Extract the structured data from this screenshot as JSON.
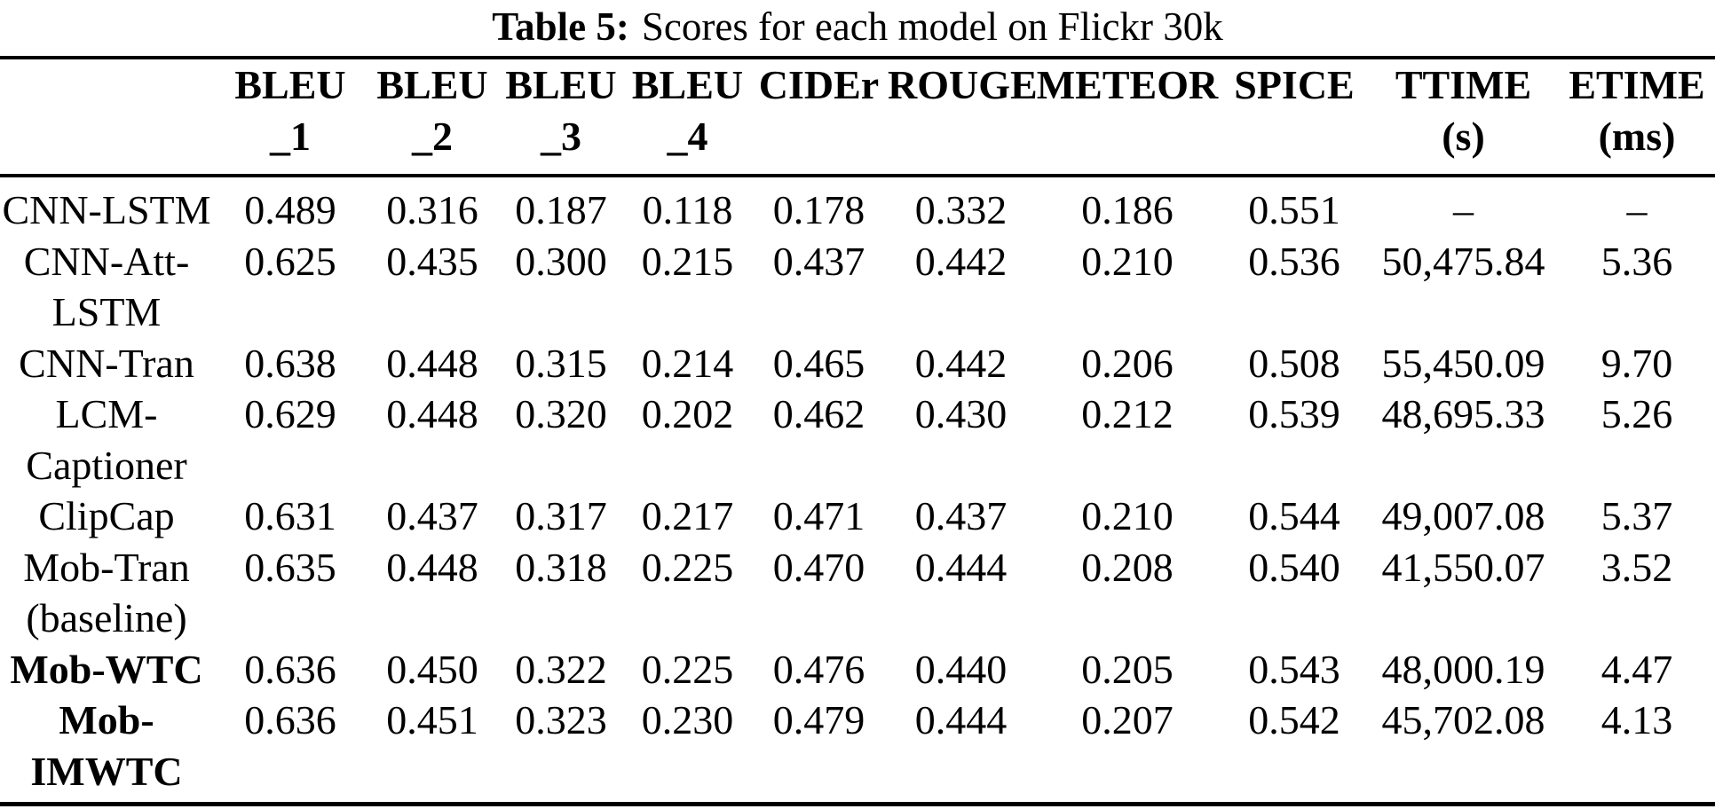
{
  "caption": {
    "label": "Table 5:",
    "text": "Scores for each model on Flickr 30k"
  },
  "table": {
    "columns": [
      {
        "name": "model",
        "label": ""
      },
      {
        "name": "bleu-1",
        "label": "BLEU\n_1"
      },
      {
        "name": "bleu-2",
        "label": "BLEU\n_2"
      },
      {
        "name": "bleu-3",
        "label": "BLEU\n_3"
      },
      {
        "name": "bleu-4",
        "label": "BLEU\n_4"
      },
      {
        "name": "cider",
        "label": "CIDEr"
      },
      {
        "name": "rouge",
        "label": "ROUGE"
      },
      {
        "name": "meteor",
        "label": "METEOR"
      },
      {
        "name": "spice",
        "label": "SPICE"
      },
      {
        "name": "ttime",
        "label": "TTIME\n(s)"
      },
      {
        "name": "etime",
        "label": "ETIME\n(ms)"
      }
    ],
    "rows": [
      {
        "model": "CNN-LSTM",
        "bold": false,
        "cells": [
          "0.489",
          "0.316",
          "0.187",
          "0.118",
          "0.178",
          "0.332",
          "0.186",
          "0.551",
          "–",
          "–"
        ]
      },
      {
        "model": "CNN-Att-\nLSTM",
        "bold": false,
        "cells": [
          "0.625",
          "0.435",
          "0.300",
          "0.215",
          "0.437",
          "0.442",
          "0.210",
          "0.536",
          "50,475.84",
          "5.36"
        ]
      },
      {
        "model": "CNN-Tran",
        "bold": false,
        "cells": [
          "0.638",
          "0.448",
          "0.315",
          "0.214",
          "0.465",
          "0.442",
          "0.206",
          "0.508",
          "55,450.09",
          "9.70"
        ]
      },
      {
        "model": "LCM-\nCaptioner",
        "bold": false,
        "cells": [
          "0.629",
          "0.448",
          "0.320",
          "0.202",
          "0.462",
          "0.430",
          "0.212",
          "0.539",
          "48,695.33",
          "5.26"
        ]
      },
      {
        "model": "ClipCap",
        "bold": false,
        "cells": [
          "0.631",
          "0.437",
          "0.317",
          "0.217",
          "0.471",
          "0.437",
          "0.210",
          "0.544",
          "49,007.08",
          "5.37"
        ]
      },
      {
        "model": "Mob-Tran\n(baseline)",
        "bold": false,
        "cells": [
          "0.635",
          "0.448",
          "0.318",
          "0.225",
          "0.470",
          "0.444",
          "0.208",
          "0.540",
          "41,550.07",
          "3.52"
        ]
      },
      {
        "model": "Mob-WTC",
        "bold": true,
        "cells": [
          "0.636",
          "0.450",
          "0.322",
          "0.225",
          "0.476",
          "0.440",
          "0.205",
          "0.543",
          "48,000.19",
          "4.47"
        ]
      },
      {
        "model": "Mob-\nIMWTC",
        "bold": true,
        "cells": [
          "0.636",
          "0.451",
          "0.323",
          "0.230",
          "0.479",
          "0.444",
          "0.207",
          "0.542",
          "45,702.08",
          "4.13"
        ]
      }
    ]
  }
}
